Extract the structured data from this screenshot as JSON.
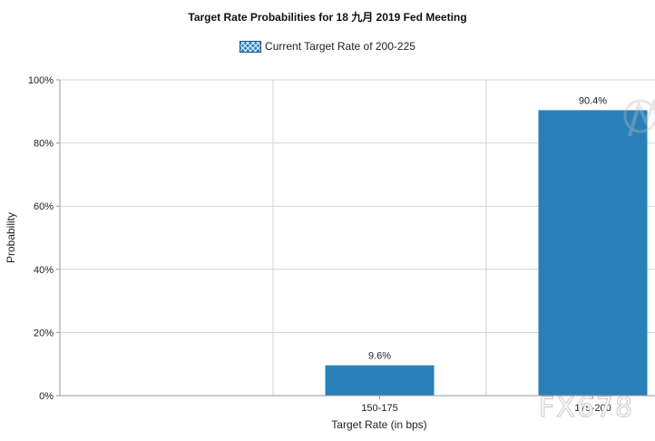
{
  "chart_data": {
    "type": "bar",
    "title": "Target Rate Probabilities for 18 九月 2019  Fed Meeting",
    "legend": [
      "Current Target Rate of 200-225"
    ],
    "legend_position": "top-center",
    "categories": [
      "150-175",
      "175-200"
    ],
    "values": [
      9.6,
      90.4
    ],
    "data_labels": [
      "9.6%",
      "90.4%"
    ],
    "xlabel": "Target Rate (in bps)",
    "ylabel": "Probability",
    "ylim": [
      0,
      100
    ],
    "yticks": [
      "0%",
      "20%",
      "40%",
      "60%",
      "80%",
      "100%"
    ],
    "grid": true,
    "colors": {
      "bar": "#2980b9",
      "grid": "#d3d3d3",
      "axis": "#9a9a9a"
    }
  },
  "watermark": "FX678"
}
